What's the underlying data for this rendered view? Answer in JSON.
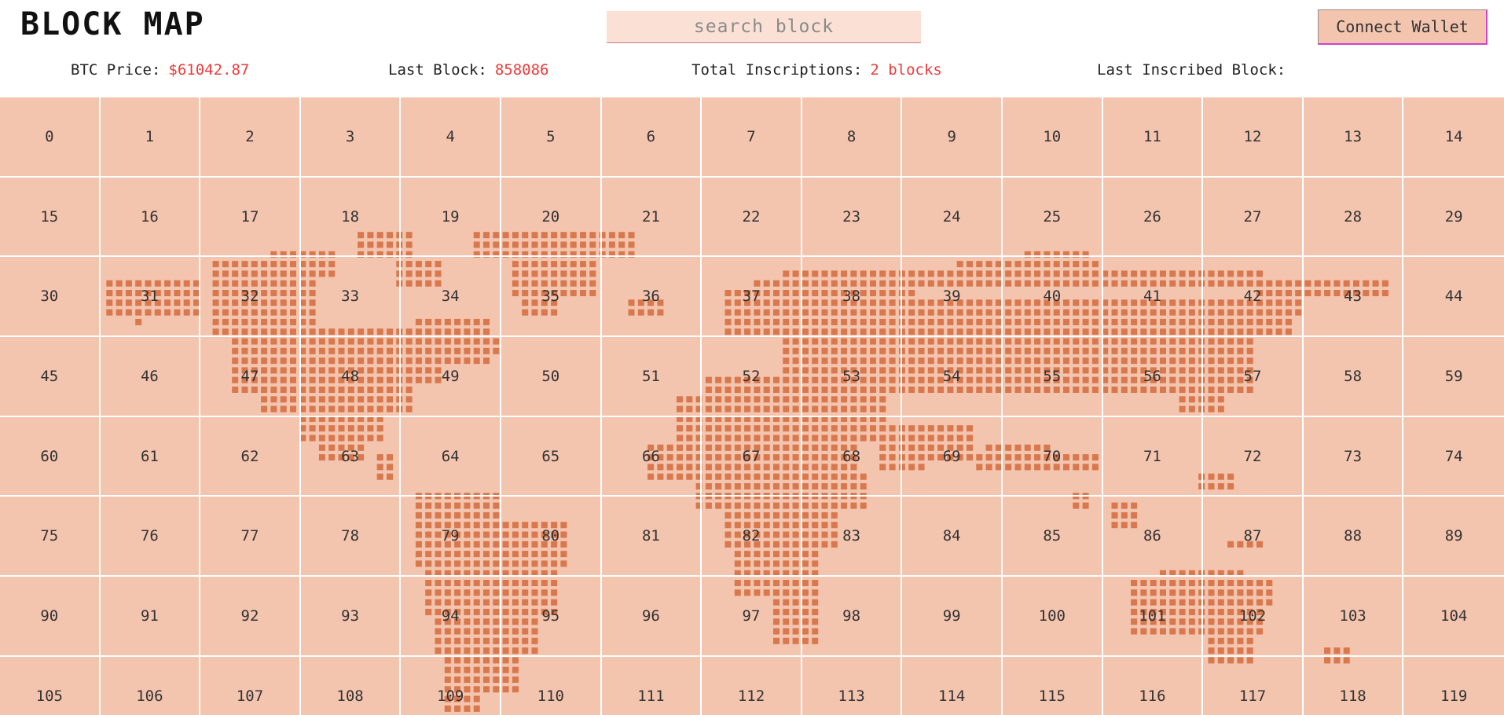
{
  "header": {
    "logo": "BLOCK MAP",
    "search_placeholder": "search block",
    "wallet_label": "Connect Wallet"
  },
  "stats": [
    {
      "label": "BTC Price:",
      "value": "$61042.87"
    },
    {
      "label": "Last Block:",
      "value": "858086"
    },
    {
      "label": "Total Inscriptions:",
      "value": "2 blocks"
    },
    {
      "label": "Last Inscribed Block:",
      "value": ""
    }
  ],
  "grid": {
    "columns": 15,
    "blocks": [
      0,
      1,
      2,
      3,
      4,
      5,
      6,
      7,
      8,
      9,
      10,
      11,
      12,
      13,
      14,
      15,
      16,
      17,
      18,
      19,
      20,
      21,
      22,
      23,
      24,
      25,
      26,
      27,
      28,
      29,
      30,
      31,
      32,
      33,
      34,
      35,
      36,
      37,
      38,
      39,
      40,
      41,
      42,
      43,
      44,
      45,
      46,
      47,
      48,
      49,
      50,
      51,
      52,
      53,
      54,
      55,
      56,
      57,
      58,
      59,
      60,
      61,
      62,
      63,
      64,
      65,
      66,
      67,
      68,
      69,
      70,
      71,
      72,
      73,
      74,
      75,
      76,
      77,
      78,
      79,
      80,
      81,
      82,
      83,
      84,
      85,
      86,
      87,
      88,
      89,
      90,
      91,
      92,
      93,
      94,
      95,
      96,
      97,
      98,
      99,
      100,
      101,
      102,
      103,
      104,
      105,
      106,
      107,
      108,
      109,
      110,
      111,
      112,
      113,
      114,
      115,
      116,
      117,
      118,
      119
    ]
  },
  "colors": {
    "cell_bg": "#f3c4ae",
    "map_dot": "#d9774d",
    "accent_value": "#ee3b3b",
    "grid_line": "#ffffff",
    "search_bg": "#fbe1d5"
  }
}
